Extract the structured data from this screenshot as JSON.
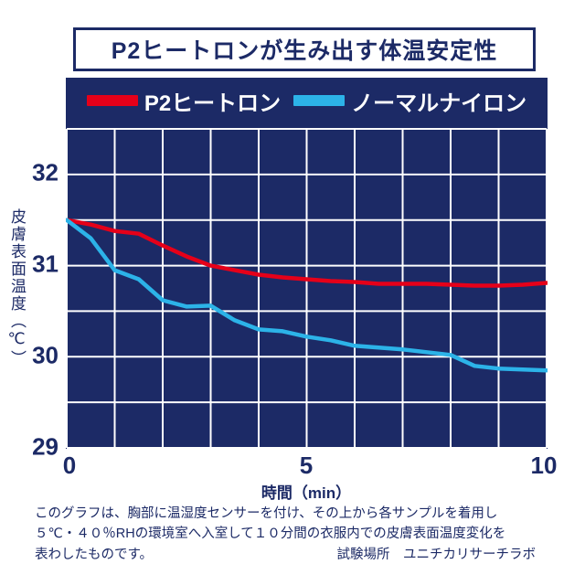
{
  "title": "P2ヒートロンが生み出す体温安定性",
  "legend": [
    {
      "label": "P2ヒートロン",
      "color": "#e50019"
    },
    {
      "label": "ノーマルナイロン",
      "color": "#2cb3e8"
    }
  ],
  "axes": {
    "y_label": "皮膚表面温度（℃）",
    "x_label": "時間（min）",
    "y_ticks": [
      "32",
      "31",
      "30",
      "29"
    ],
    "x_ticks": [
      "0",
      "5",
      "10"
    ]
  },
  "footer": {
    "line1": "このグラフは、胸部に温湿度センサーを付け、その上から各サンプルを着用し",
    "line2": "５℃・４０％RHの環境室へ入室して１０分間の衣服内での皮膚表面温度変化を",
    "line3": "表わしたものです。",
    "test_site": "試験場所　ユニチカリサーチラボ"
  },
  "colors": {
    "navy": "#1c2a66",
    "grid": "#ffffff",
    "red": "#e50019",
    "cyan": "#2cb3e8"
  },
  "chart_data": {
    "type": "line",
    "title": "P2ヒートロンが生み出す体温安定性",
    "xlabel": "時間（min）",
    "ylabel": "皮膚表面温度（℃）",
    "xlim": [
      0,
      10
    ],
    "ylim": [
      29,
      32.5
    ],
    "grid_step_x": 1,
    "grid_step_y": 0.5,
    "grid": true,
    "legend_position": "top",
    "x": [
      0,
      0.5,
      1,
      1.5,
      2,
      2.5,
      3,
      3.5,
      4,
      4.5,
      5,
      5.5,
      6,
      6.5,
      7,
      7.5,
      8,
      8.5,
      9,
      9.5,
      10
    ],
    "series": [
      {
        "name": "P2ヒートロン",
        "key": "p2-heatron",
        "color": "#e50019",
        "values": [
          31.5,
          31.45,
          31.38,
          31.35,
          31.22,
          31.1,
          31.0,
          30.95,
          30.9,
          30.87,
          30.85,
          30.83,
          30.82,
          30.8,
          30.8,
          30.8,
          30.79,
          30.78,
          30.78,
          30.79,
          30.81
        ]
      },
      {
        "name": "ノーマルナイロン",
        "key": "normal-nylon",
        "color": "#2cb3e8",
        "values": [
          31.5,
          31.3,
          30.95,
          30.85,
          30.62,
          30.55,
          30.56,
          30.4,
          30.3,
          30.28,
          30.22,
          30.18,
          30.12,
          30.1,
          30.08,
          30.05,
          30.02,
          29.9,
          29.87,
          29.86,
          29.85
        ]
      }
    ]
  }
}
